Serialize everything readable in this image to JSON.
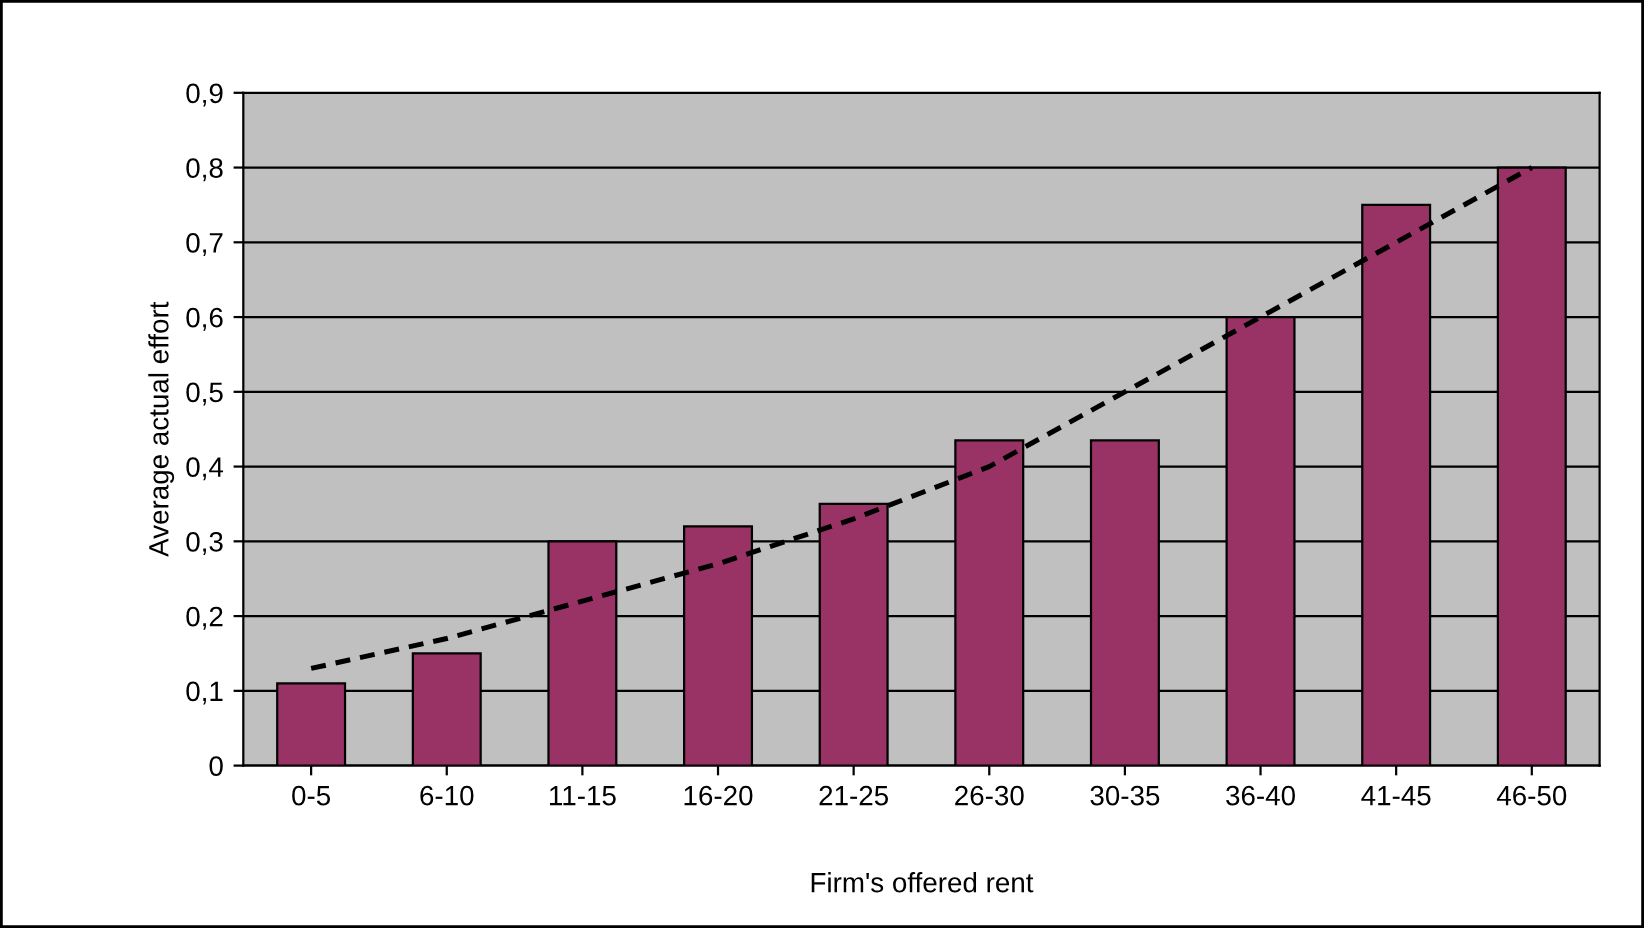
{
  "chart_data": {
    "type": "bar",
    "xlabel": "Firm's offered rent",
    "ylabel": "Average actual effort",
    "categories": [
      "0-5",
      "6-10",
      "11-15",
      "16-20",
      "21-25",
      "26-30",
      "30-35",
      "36-40",
      "41-45",
      "46-50"
    ],
    "series": [
      {
        "color": "#993366",
        "values": [
          0.11,
          0.15,
          0.3,
          0.32,
          0.35,
          0.435,
          0.435,
          0.6,
          0.75,
          0.8
        ]
      },
      {
        "type": "line",
        "color": "#000000",
        "line_style": "dashed",
        "values": [
          0.13,
          0.17,
          0.22,
          0.27,
          0.33,
          0.4,
          0.5,
          0.6,
          0.7,
          0.8
        ]
      }
    ],
    "ylim": [
      0,
      0.9
    ],
    "yticks": [
      0,
      {
        "value": 0.1,
        "label": "0,1"
      },
      {
        "value": 0.2,
        "label": "0,2"
      },
      {
        "value": 0.3,
        "label": "0,3"
      },
      {
        "value": 0.4,
        "label": "0,4"
      },
      {
        "value": 0.5,
        "label": "0,5"
      },
      {
        "value": 0.6,
        "label": "0,6"
      },
      {
        "value": 0.7,
        "label": "0,7"
      },
      {
        "value": 0.8,
        "label": "0,8"
      },
      {
        "value": 0.9,
        "label": "0,9"
      }
    ],
    "grid": "y",
    "legend": false
  }
}
